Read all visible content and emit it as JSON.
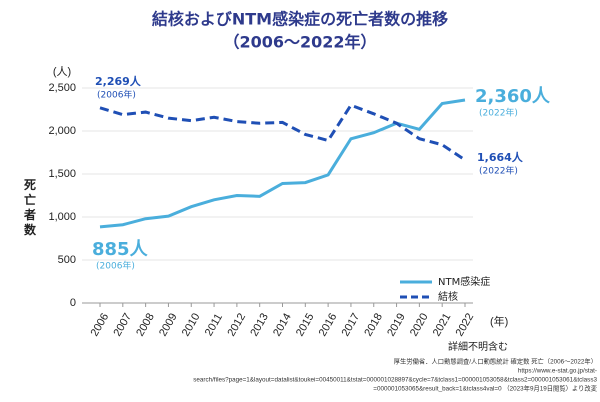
{
  "chart_data": {
    "type": "line",
    "title": "結核およびNTM感染症の死亡者数の推移",
    "subtitle": "（2006～2022年）",
    "y_label": "死亡者数",
    "y_unit": "(人)",
    "x_unit": "(年)",
    "x_note": "詳細不明含む",
    "categories": [
      "2006",
      "2007",
      "2008",
      "2009",
      "2010",
      "2011",
      "2012",
      "2013",
      "2014",
      "2015",
      "2016",
      "2017",
      "2018",
      "2019",
      "2020",
      "2021",
      "2022"
    ],
    "series": [
      {
        "name": "NTM感染症",
        "color": "#4aaedc",
        "dashed": false,
        "values": [
          885,
          910,
          980,
          1010,
          1120,
          1200,
          1250,
          1240,
          1390,
          1400,
          1490,
          1910,
          1980,
          2090,
          2020,
          2320,
          2360
        ],
        "value_labels": [
          "885人",
          null,
          null,
          null,
          null,
          null,
          null,
          null,
          null,
          null,
          null,
          null,
          null,
          null,
          null,
          null,
          "2,360人"
        ],
        "value_label_notes": [
          "(2006年)",
          null,
          null,
          null,
          null,
          null,
          null,
          null,
          null,
          null,
          null,
          null,
          null,
          null,
          null,
          null,
          "(2022年)"
        ]
      },
      {
        "name": "結核",
        "color": "#1f4fb5",
        "dashed": true,
        "values": [
          2269,
          2190,
          2220,
          2150,
          2120,
          2160,
          2110,
          2090,
          2100,
          1960,
          1890,
          2300,
          2200,
          2090,
          1910,
          1840,
          1664
        ],
        "value_labels": [
          "2,269人",
          null,
          null,
          null,
          null,
          null,
          null,
          null,
          null,
          null,
          null,
          null,
          null,
          null,
          null,
          null,
          "1,664人"
        ],
        "value_label_notes": [
          "(2006年)",
          null,
          null,
          null,
          null,
          null,
          null,
          null,
          null,
          null,
          null,
          null,
          null,
          null,
          null,
          null,
          "(2022年)"
        ]
      }
    ],
    "ylim": [
      0,
      2500
    ],
    "yticks": [
      0,
      500,
      {
        "value": 1000,
        "label": "1,000"
      },
      {
        "value": 1500,
        "label": "1,500"
      },
      {
        "value": 2000,
        "label": "2,000"
      },
      {
        "value": 2500,
        "label": "2,500"
      }
    ],
    "grid": true,
    "legend": "lower right",
    "source": [
      "厚生労働省．人口動態調査/人口動態統計 確定数 死亡（2006～2022年）",
      "https://www.e-stat.go.jp/stat-",
      "search/files?page=1&layout=datalist&toukei=00450011&tstat=000001028897&cycle=7&tclass1=000001053058&tclass2=000001053061&tclass3",
      "=000001053065&result_back=1&tclass4val=0 （2023年9月19日閲覧）より改変"
    ]
  }
}
